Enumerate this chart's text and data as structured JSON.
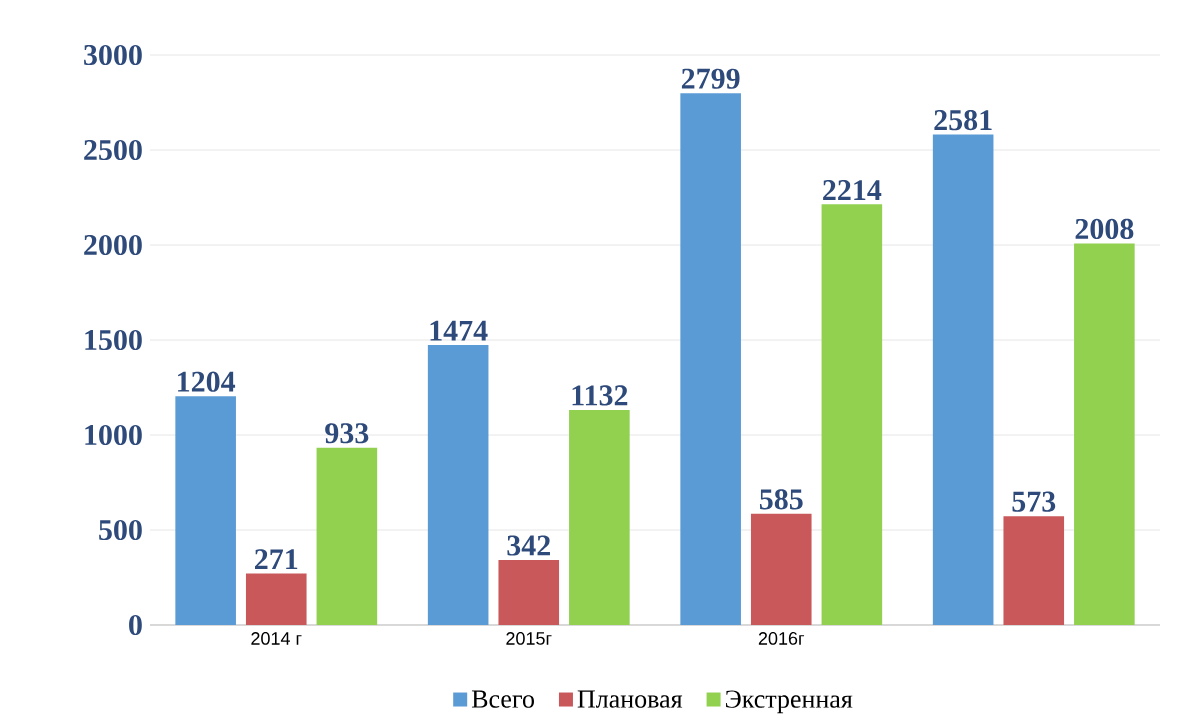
{
  "chart_data": {
    "type": "bar",
    "categories": [
      "2014 г",
      "2015г",
      "2016г",
      null
    ],
    "series": [
      {
        "name": "Всего",
        "color": "#5b9bd5",
        "values": [
          1204,
          1474,
          2799,
          2581
        ]
      },
      {
        "name": "Плановая",
        "color": "#c9585a",
        "values": [
          271,
          342,
          585,
          573
        ]
      },
      {
        "name": "Экстренная",
        "color": "#92d050",
        "values": [
          933,
          1132,
          2214,
          2008
        ]
      }
    ],
    "ylim": [
      0,
      3000
    ],
    "yticks": [
      0,
      500,
      1000,
      1500,
      2000,
      2500,
      3000
    ],
    "grid": "y",
    "legend": "bottom",
    "data_labels": true
  }
}
